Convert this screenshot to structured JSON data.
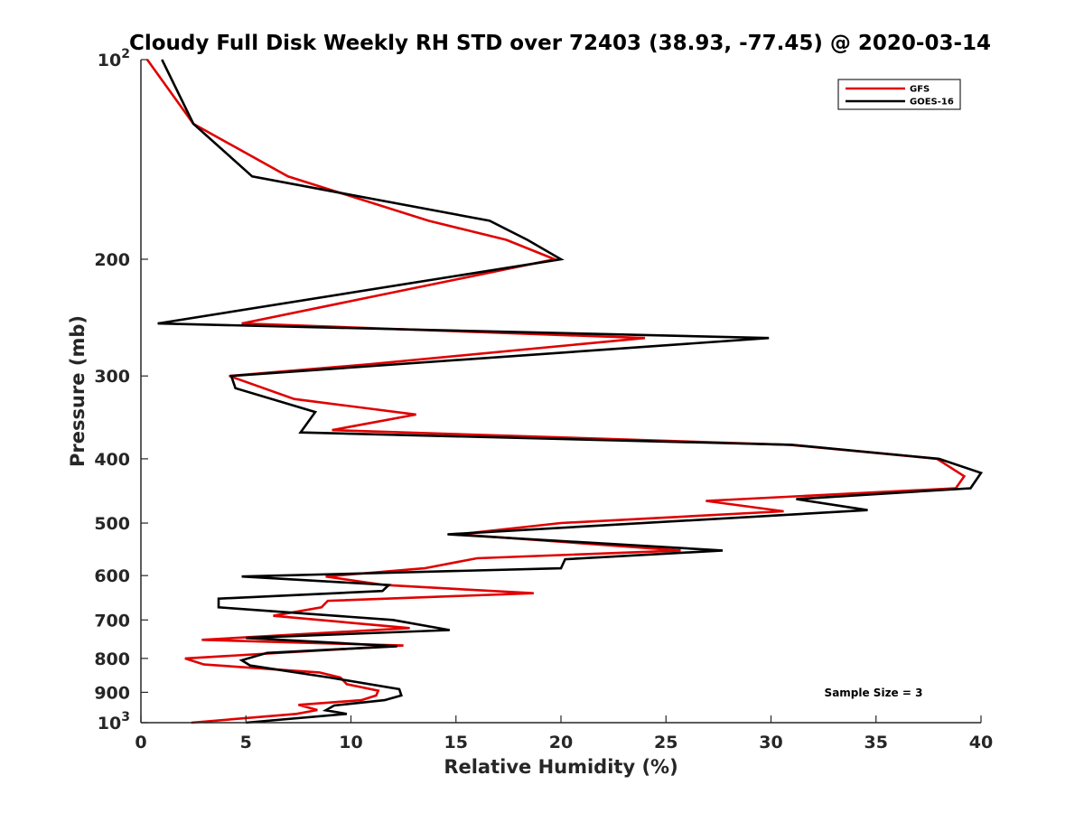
{
  "chart_data": {
    "type": "line",
    "title": "Cloudy Full Disk Weekly RH STD over 72403 (38.93, -77.45) @ 2020-03-14",
    "xlabel": "Relative Humidity (%)",
    "ylabel": "Pressure (mb)",
    "xlim": [
      0,
      40
    ],
    "ylim": [
      100,
      1000
    ],
    "y_scale": "log",
    "y_reversed": true,
    "x_ticks": [
      "0",
      "5",
      "10",
      "15",
      "20",
      "25",
      "30",
      "35",
      "40"
    ],
    "y_ticks": [
      {
        "value": 100,
        "label": "10",
        "sup": "2"
      },
      {
        "value": 200,
        "label": "200",
        "sup": ""
      },
      {
        "value": 300,
        "label": "300",
        "sup": ""
      },
      {
        "value": 400,
        "label": "400",
        "sup": ""
      },
      {
        "value": 500,
        "label": "500",
        "sup": ""
      },
      {
        "value": 600,
        "label": "600",
        "sup": ""
      },
      {
        "value": 700,
        "label": "700",
        "sup": ""
      },
      {
        "value": 800,
        "label": "800",
        "sup": ""
      },
      {
        "value": 900,
        "label": "900",
        "sup": ""
      },
      {
        "value": 1000,
        "label": "10",
        "sup": "3"
      }
    ],
    "grid": false,
    "legend_position": "top-right",
    "annotation": "Sample Size = 3",
    "series": [
      {
        "name": "GFS",
        "color": "#e00000",
        "points": [
          [
            0.3,
            100
          ],
          [
            2.5,
            125
          ],
          [
            7.0,
            150
          ],
          [
            13.7,
            175
          ],
          [
            17.4,
            187
          ],
          [
            19.7,
            200
          ],
          [
            4.8,
            250
          ],
          [
            24.0,
            263
          ],
          [
            10.9,
            288
          ],
          [
            4.2,
            300
          ],
          [
            7.3,
            325
          ],
          [
            13.1,
            343
          ],
          [
            9.1,
            362
          ],
          [
            30.9,
            381
          ],
          [
            37.9,
            400
          ],
          [
            39.2,
            425
          ],
          [
            38.8,
            443
          ],
          [
            26.9,
            463
          ],
          [
            30.6,
            480
          ],
          [
            20.0,
            500
          ],
          [
            15.1,
            520
          ],
          [
            25.7,
            550
          ],
          [
            16.0,
            565
          ],
          [
            13.5,
            585
          ],
          [
            8.8,
            602
          ],
          [
            11.6,
            620
          ],
          [
            18.7,
            638
          ],
          [
            8.9,
            655
          ],
          [
            8.6,
            670
          ],
          [
            6.3,
            690
          ],
          [
            12.8,
            720
          ],
          [
            2.9,
            750
          ],
          [
            12.5,
            765
          ],
          [
            2.1,
            800
          ],
          [
            3.0,
            817
          ],
          [
            8.5,
            840
          ],
          [
            9.5,
            855
          ],
          [
            9.8,
            875
          ],
          [
            11.3,
            895
          ],
          [
            11.2,
            910
          ],
          [
            10.5,
            925
          ],
          [
            7.5,
            940
          ],
          [
            8.4,
            957
          ],
          [
            7.4,
            970
          ],
          [
            2.4,
            1000
          ]
        ]
      },
      {
        "name": "GOES-16",
        "color": "#000000",
        "points": [
          [
            1.0,
            100
          ],
          [
            2.5,
            125
          ],
          [
            5.3,
            150
          ],
          [
            16.6,
            175
          ],
          [
            18.4,
            187
          ],
          [
            20.0,
            200
          ],
          [
            0.8,
            250
          ],
          [
            29.9,
            263
          ],
          [
            4.3,
            300
          ],
          [
            4.5,
            313
          ],
          [
            8.3,
            340
          ],
          [
            7.6,
            365
          ],
          [
            31.0,
            381
          ],
          [
            38.0,
            400
          ],
          [
            40.0,
            420
          ],
          [
            39.5,
            443
          ],
          [
            31.2,
            460
          ],
          [
            34.6,
            478
          ],
          [
            14.6,
            520
          ],
          [
            27.7,
            550
          ],
          [
            20.2,
            567
          ],
          [
            20.0,
            585
          ],
          [
            4.8,
            602
          ],
          [
            11.8,
            620
          ],
          [
            11.5,
            633
          ],
          [
            3.7,
            650
          ],
          [
            3.7,
            670
          ],
          [
            12.0,
            700
          ],
          [
            14.7,
            725
          ],
          [
            5.0,
            745
          ],
          [
            12.2,
            767
          ],
          [
            6.0,
            785
          ],
          [
            4.8,
            805
          ],
          [
            5.2,
            820
          ],
          [
            9.0,
            855
          ],
          [
            12.3,
            890
          ],
          [
            12.4,
            910
          ],
          [
            11.6,
            925
          ],
          [
            9.2,
            942
          ],
          [
            8.8,
            958
          ],
          [
            9.8,
            970
          ],
          [
            5.0,
            1000
          ]
        ]
      }
    ]
  }
}
